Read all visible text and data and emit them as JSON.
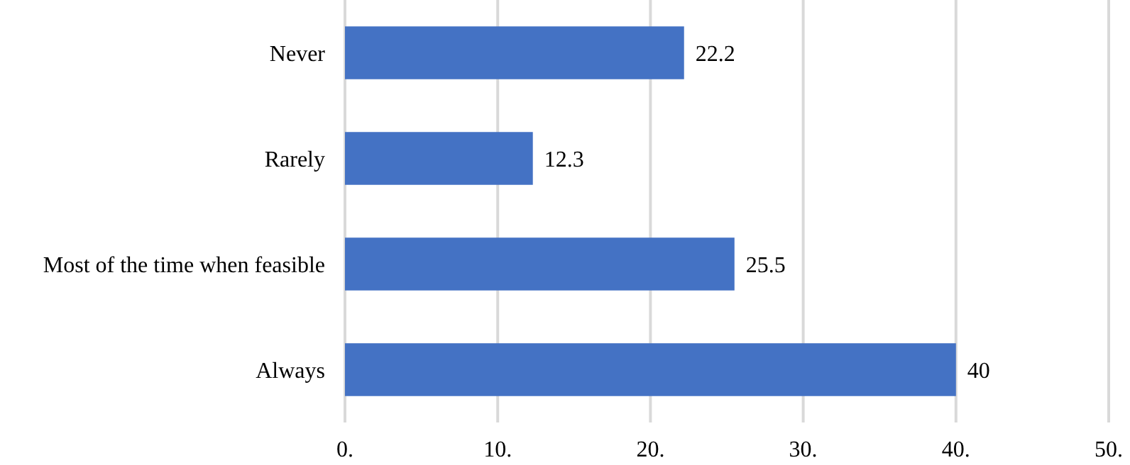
{
  "chart_data": {
    "type": "bar",
    "orientation": "horizontal",
    "categories": [
      "Never",
      "Rarely",
      "Most of the time when feasible",
      "Always"
    ],
    "values": [
      22.2,
      12.3,
      25.5,
      40
    ],
    "color": "#4472c4",
    "xlim": [
      0,
      50
    ],
    "xticks": [
      {
        "value": 0,
        "label": "0."
      },
      {
        "value": 10,
        "label": "10."
      },
      {
        "value": 20,
        "label": "20."
      },
      {
        "value": 30,
        "label": "30."
      },
      {
        "value": 40,
        "label": "40."
      },
      {
        "value": 50,
        "label": "50."
      }
    ],
    "grid": "x",
    "data_labels": true
  }
}
